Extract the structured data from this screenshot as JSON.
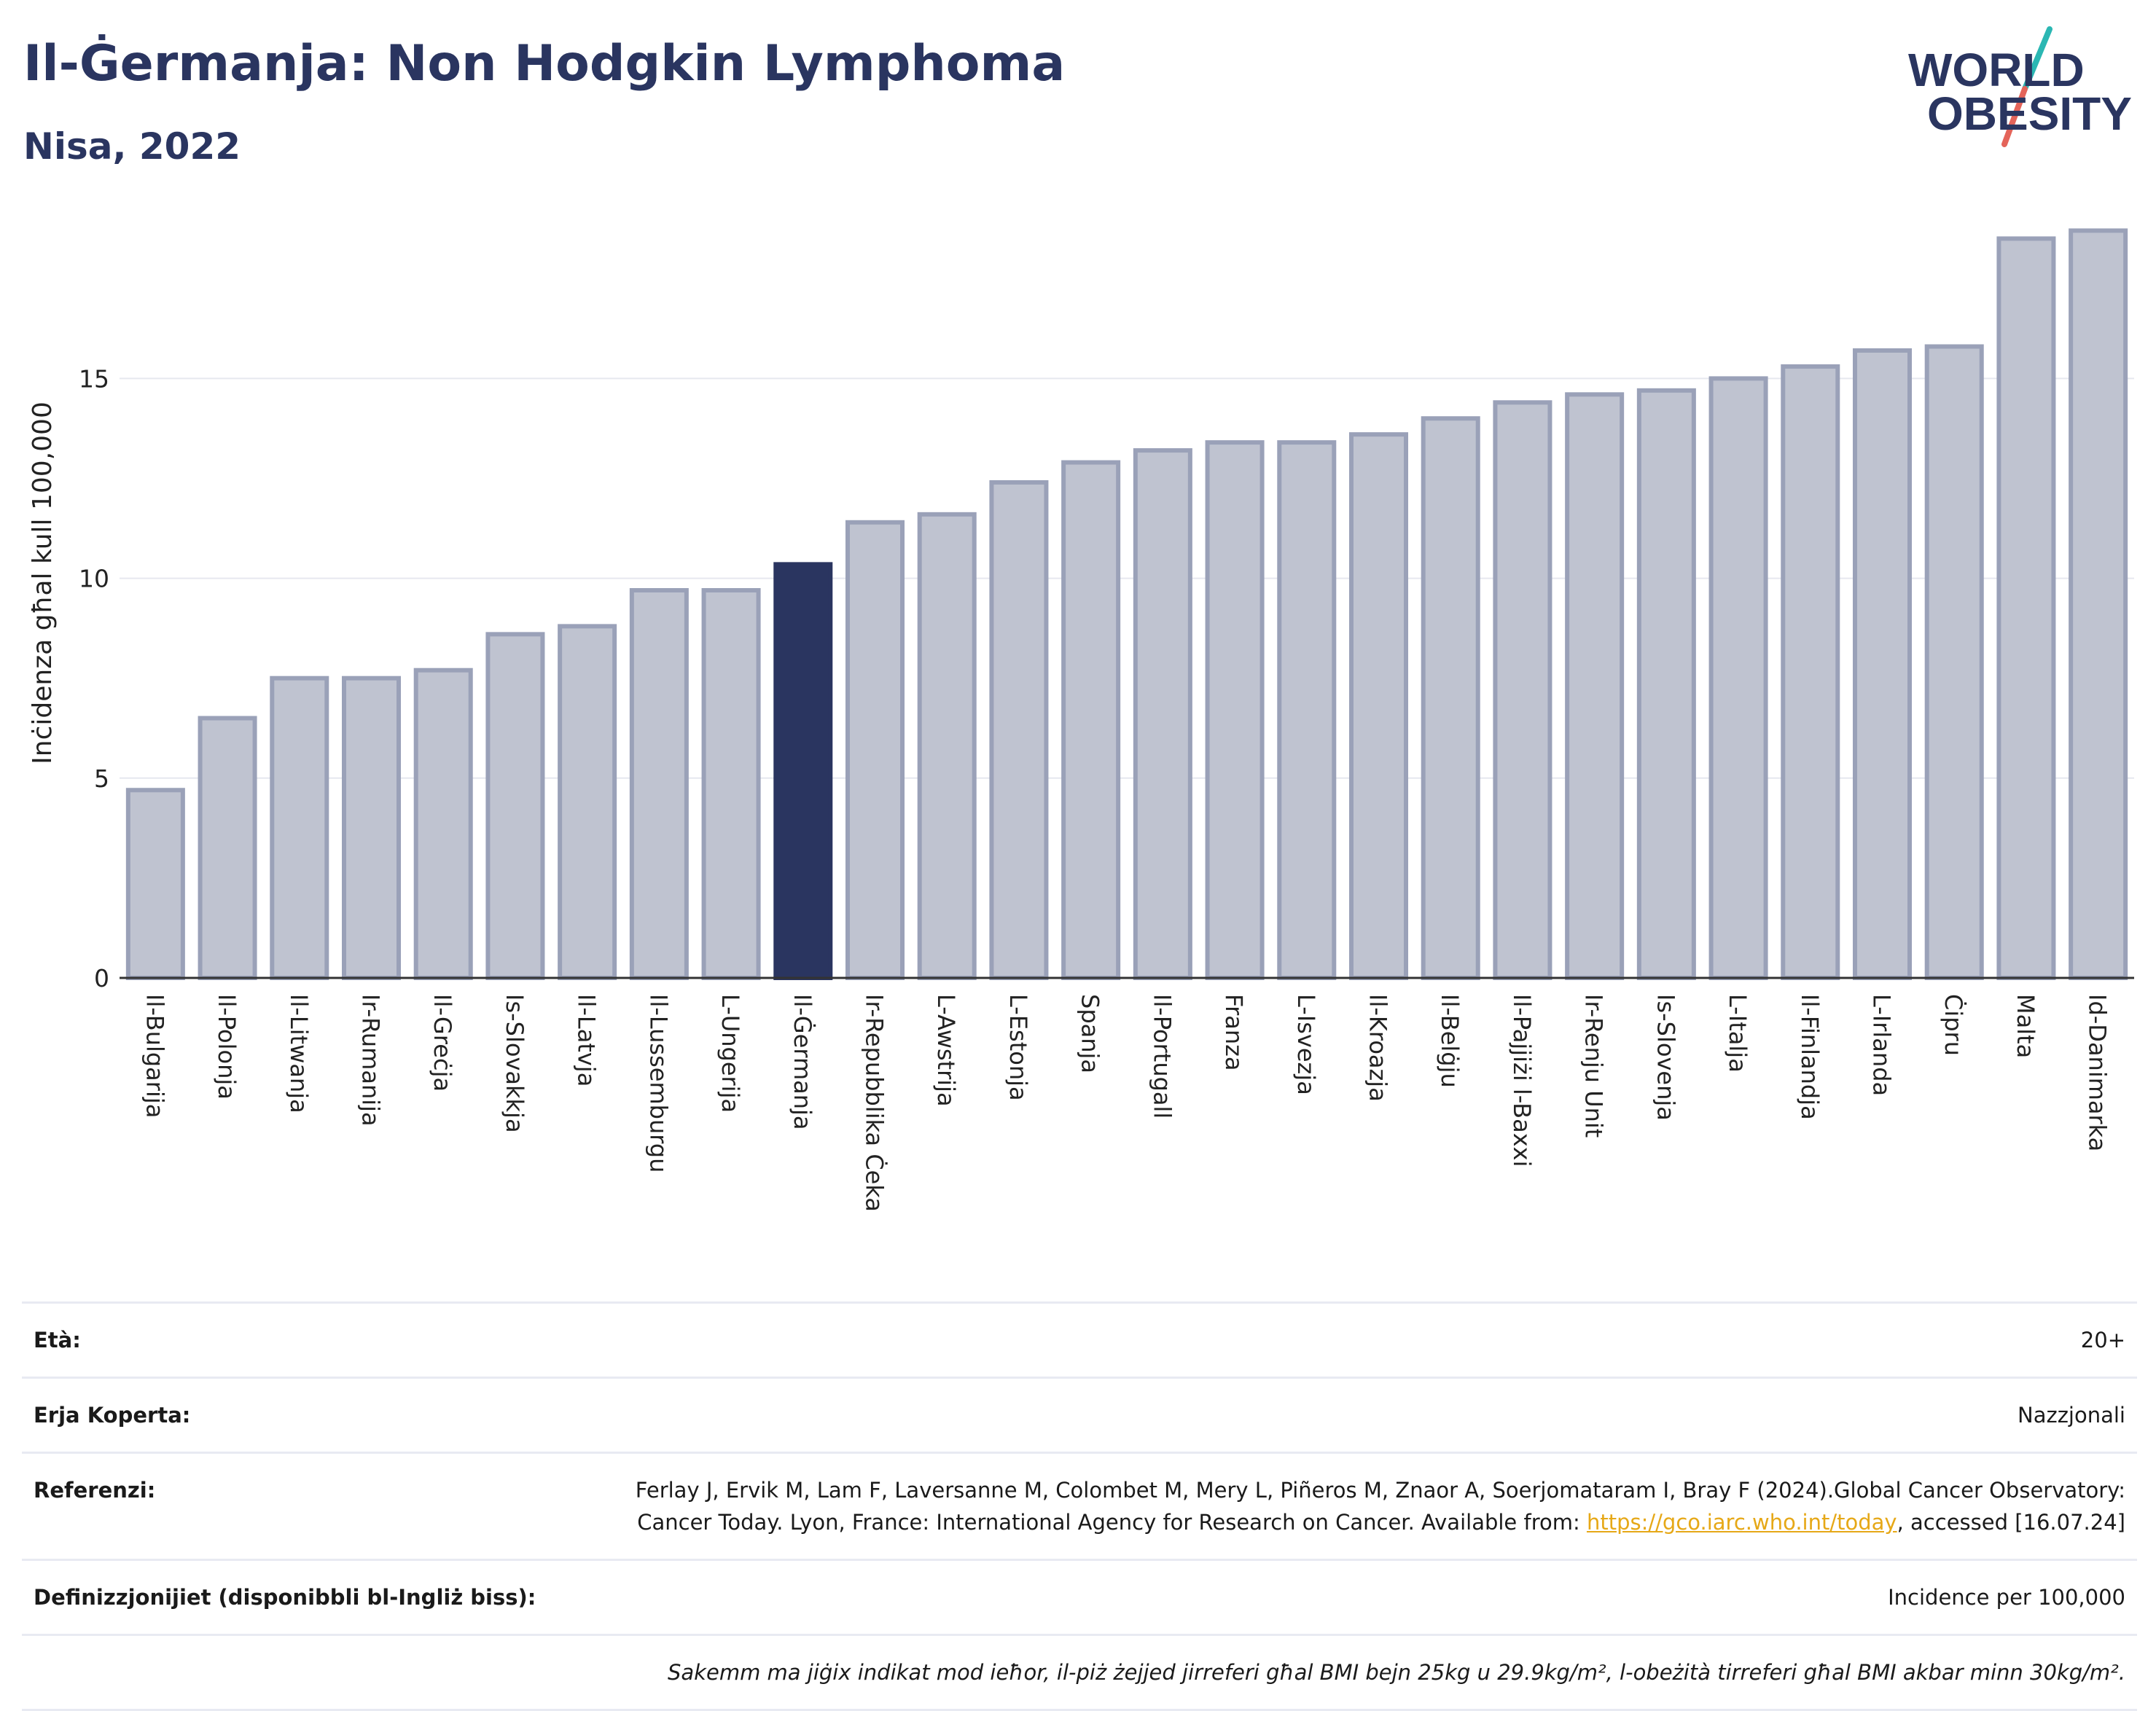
{
  "header": {
    "title": "Il-Ġermanja: Non Hodgkin Lymphoma",
    "subtitle": "Nisa, 2022"
  },
  "logo": {
    "line1": "WORLD",
    "line2": "OBESITY",
    "colors": {
      "text": "#2a3560",
      "slash_teal": "#2bb7b3",
      "slash_red": "#e4645a"
    }
  },
  "colors": {
    "bar": "#bfc3d0",
    "bar_border": "#9aa1b8",
    "highlight": "#2a3560",
    "grid": "#e6e8ef",
    "axis": "#333333"
  },
  "chart_data": {
    "type": "bar",
    "ylabel": "Inċidenza għal kull 100,000",
    "ylim": [
      0,
      19
    ],
    "yticks": [
      0,
      5,
      10,
      15
    ],
    "grid": true,
    "highlight": "Il-Ġermanja",
    "categories": [
      "Il-Bulgarija",
      "Il-Polonja",
      "Il-Litwanja",
      "Ir-Rumanija",
      "Il-Greċja",
      "Is-Slovakkja",
      "Il-Latvja",
      "Il-Lussemburgu",
      "L-Ungerija",
      "Il-Ġermanja",
      "Ir-Repubblika Ċeka",
      "L-Awstrija",
      "L-Estonja",
      "Spanja",
      "Il-Portugall",
      "Franza",
      "L-Isvezja",
      "Il-Kroazja",
      "Il-Belġju",
      "Il-Pajjiżi l-Baxxi",
      "Ir-Renju Unit",
      "Is-Slovenja",
      "L-Italja",
      "Il-Finlandja",
      "L-Irlanda",
      "Ċipru",
      "Malta",
      "Id-Danimarka"
    ],
    "values": [
      4.7,
      6.5,
      7.5,
      7.5,
      7.7,
      8.6,
      8.8,
      9.7,
      9.7,
      10.35,
      11.4,
      11.6,
      12.4,
      12.9,
      13.2,
      13.4,
      13.4,
      13.6,
      14.0,
      14.4,
      14.6,
      14.7,
      15.0,
      15.3,
      15.7,
      15.8,
      18.5,
      18.7
    ]
  },
  "info": {
    "age_label": "Età:",
    "age_value": "20+",
    "coverage_label": "Erja Koperta:",
    "coverage_value": "Nazzjonali",
    "references_label": "Referenzi:",
    "references_text_1": "Ferlay J, Ervik M, Lam F, Laversanne M, Colombet M, Mery L, Piñeros M, Znaor A, Soerjomataram I, Bray F (2024).Global Cancer Observatory: Cancer Today. Lyon, France: International Agency for Research on Cancer. Available from: ",
    "references_link": "https://gco.iarc.who.int/today",
    "references_text_2": ", accessed [16.07.24]",
    "definitions_label": "Definizzjonijiet (disponibbli bl-Ingliż biss):",
    "definitions_value": "Incidence per 100,000",
    "note": "Sakemm ma jiġix indikat mod ieħor, il-piż żejjed jirreferi għal BMI bejn 25kg u 29.9kg/m², l-obeżità tirreferi għal BMI akbar minn 30kg/m²."
  }
}
